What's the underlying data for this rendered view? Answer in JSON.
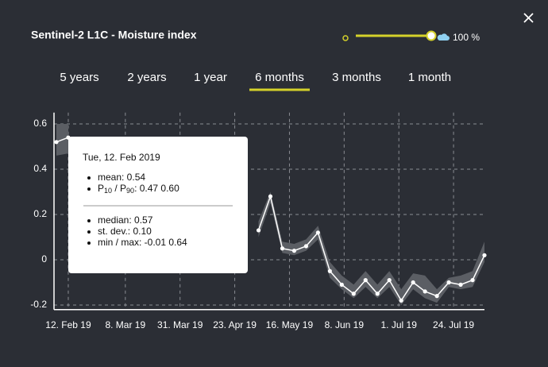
{
  "title": "Sentinel-2 L1C - Moisture index",
  "opacity_label": "100 %",
  "tabs": [
    "5 years",
    "2 years",
    "1 year",
    "6 months",
    "3 months",
    "1 month"
  ],
  "active_tab": 3,
  "tooltip": {
    "date": "Tue, 12. Feb 2019",
    "mean": "mean: 0.54",
    "p_row": {
      "p1": "P",
      "sub1": "10",
      "sep": " / P",
      "sub2": "90",
      "value": ": 0.47 0.60"
    },
    "median": "median: 0.57",
    "stdev": "st. dev.: 0.10",
    "minmax": "min / max: -0.01 0.64"
  },
  "chart_data": {
    "type": "line",
    "x": [
      "2019-02-07",
      "2019-02-12",
      "2019-02-17",
      "2019-02-22",
      "2019-02-27",
      "2019-03-04",
      "2019-03-09",
      "2019-03-14",
      "2019-03-19",
      "2019-03-24",
      "2019-03-29",
      "2019-04-03",
      "2019-04-08",
      "2019-04-13",
      "2019-04-18",
      "2019-04-23",
      "2019-04-28",
      "2019-05-03",
      "2019-05-08",
      "2019-05-13",
      "2019-05-18",
      "2019-05-23",
      "2019-05-28",
      "2019-06-02",
      "2019-06-07",
      "2019-06-12",
      "2019-06-17",
      "2019-06-22",
      "2019-06-27",
      "2019-07-02",
      "2019-07-07",
      "2019-07-12",
      "2019-07-17",
      "2019-07-22",
      "2019-07-27",
      "2019-08-01",
      "2019-08-06"
    ],
    "values": [
      0.52,
      0.54,
      null,
      null,
      null,
      null,
      null,
      null,
      null,
      null,
      null,
      null,
      null,
      null,
      null,
      null,
      null,
      0.13,
      0.28,
      0.05,
      0.04,
      0.06,
      0.12,
      -0.05,
      -0.11,
      -0.15,
      -0.09,
      -0.15,
      -0.09,
      -0.18,
      -0.1,
      -0.14,
      -0.16,
      -0.1,
      -0.11,
      -0.09,
      0.02
    ],
    "band_high": [
      0.6,
      0.6,
      null,
      null,
      null,
      null,
      null,
      null,
      null,
      null,
      null,
      null,
      null,
      null,
      null,
      null,
      null,
      0.17,
      0.3,
      0.08,
      0.07,
      0.09,
      0.15,
      -0.01,
      -0.07,
      -0.11,
      -0.05,
      -0.11,
      -0.05,
      -0.13,
      -0.06,
      -0.07,
      -0.13,
      -0.08,
      -0.07,
      -0.05,
      0.08
    ],
    "band_low": [
      0.46,
      0.47,
      null,
      null,
      null,
      null,
      null,
      null,
      null,
      null,
      null,
      null,
      null,
      null,
      null,
      null,
      null,
      0.1,
      0.25,
      0.03,
      0.02,
      0.04,
      0.09,
      -0.08,
      -0.13,
      -0.17,
      -0.12,
      -0.17,
      -0.12,
      -0.2,
      -0.13,
      -0.17,
      -0.19,
      -0.12,
      -0.13,
      -0.12,
      -0.01
    ],
    "color": "#ffffff",
    "band_color": "#5b5e64",
    "xlim": [
      "2019-02-06",
      "2019-08-06"
    ],
    "ylim": [
      -0.22,
      0.65
    ],
    "yticks": [
      -0.2,
      0,
      0.2,
      0.4,
      0.6
    ],
    "xticks": [
      {
        "value": "2019-02-12",
        "label": "12. Feb 19"
      },
      {
        "value": "2019-03-08",
        "label": "8. Mar 19"
      },
      {
        "value": "2019-03-31",
        "label": "31. Mar 19"
      },
      {
        "value": "2019-04-23",
        "label": "23. Apr 19"
      },
      {
        "value": "2019-05-16",
        "label": "16. May 19"
      },
      {
        "value": "2019-06-08",
        "label": "8. Jun 19"
      },
      {
        "value": "2019-07-01",
        "label": "1. Jul 19"
      },
      {
        "value": "2019-07-24",
        "label": "24. Jul 19"
      }
    ],
    "grid": true
  }
}
